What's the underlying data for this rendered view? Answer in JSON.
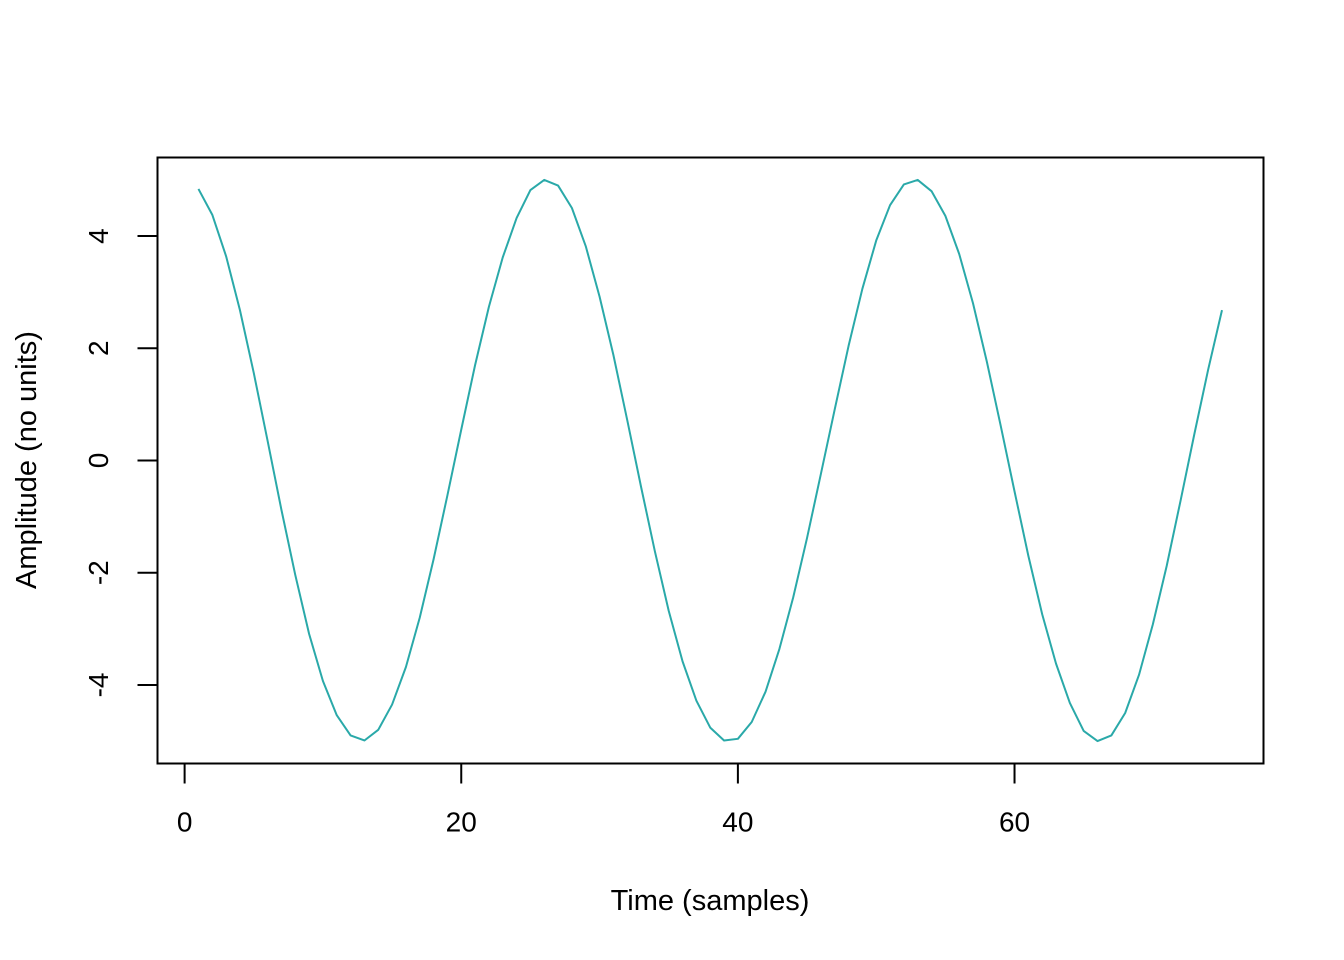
{
  "chart_data": {
    "type": "line",
    "title": "",
    "xlabel": "Time (samples)",
    "ylabel": "Amplitude (no units)",
    "xlim": [
      -1.96,
      78
    ],
    "ylim": [
      -5.4,
      5.4
    ],
    "x_ticks": [
      0,
      20,
      40,
      60
    ],
    "x_tick_labels": [
      "0",
      "20",
      "40",
      "60"
    ],
    "y_ticks": [
      -4,
      -2,
      0,
      2,
      4
    ],
    "y_tick_labels": [
      "-4",
      "-2",
      "0",
      "2",
      "4"
    ],
    "grid": false,
    "series": [
      {
        "color": "#2aa9a9",
        "x": [
          1,
          2,
          3,
          4,
          5,
          6,
          7,
          8,
          9,
          10,
          11,
          12,
          13,
          14,
          15,
          16,
          17,
          18,
          19,
          20,
          21,
          22,
          23,
          24,
          25,
          26,
          27,
          28,
          29,
          30,
          31,
          32,
          33,
          34,
          35,
          36,
          37,
          38,
          39,
          40,
          41,
          42,
          43,
          44,
          45,
          46,
          47,
          48,
          49,
          50,
          51,
          52,
          53,
          54,
          55,
          56,
          57,
          58,
          59,
          60,
          61,
          62,
          63,
          64,
          65,
          66,
          67,
          68,
          69,
          70,
          71,
          72,
          73,
          74,
          75
        ],
        "y": [
          4.84,
          4.38,
          3.64,
          2.68,
          1.56,
          0.35,
          -0.88,
          -2.04,
          -3.09,
          -3.93,
          -4.54,
          -4.9,
          -4.99,
          -4.8,
          -4.35,
          -3.68,
          -2.8,
          -1.76,
          -0.62,
          0.55,
          1.7,
          2.74,
          3.62,
          4.32,
          4.82,
          5.0,
          4.9,
          4.5,
          3.82,
          2.92,
          1.88,
          0.72,
          -0.47,
          -1.62,
          -2.68,
          -3.58,
          -4.28,
          -4.76,
          -4.99,
          -4.96,
          -4.66,
          -4.12,
          -3.36,
          -2.44,
          -1.38,
          -0.24,
          0.91,
          2.04,
          3.06,
          3.92,
          4.55,
          4.92,
          5.0,
          4.8,
          4.36,
          3.68,
          2.8,
          1.76,
          0.62,
          -0.55,
          -1.7,
          -2.74,
          -3.62,
          -4.32,
          -4.82,
          -5.0,
          -4.9,
          -4.5,
          -3.82,
          -2.92,
          -1.88,
          -0.72,
          0.47,
          1.62,
          2.68
        ]
      }
    ]
  }
}
